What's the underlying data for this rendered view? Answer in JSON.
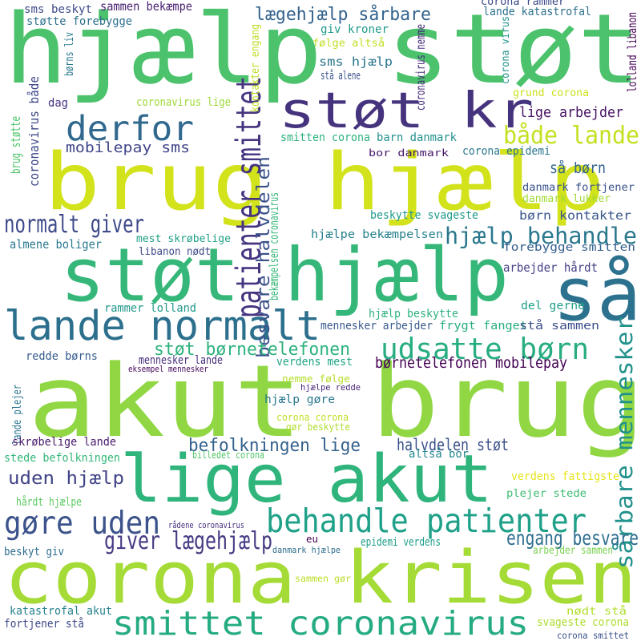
{
  "words": [
    {
      "text": "hjælp støt",
      "color": "#4cc26c"
    },
    {
      "text": "akut brug",
      "color": "#90d743"
    },
    {
      "text": "corona krisen",
      "color": "#a5db36"
    },
    {
      "text": "lige akut",
      "color": "#2fb47c"
    },
    {
      "text": "brug hjælp",
      "color": "#d2e21b"
    },
    {
      "text": "støt hjælp",
      "color": "#35b779"
    },
    {
      "text": "så",
      "color": "#2c728e"
    },
    {
      "text": "støt kr",
      "color": "#46337e"
    },
    {
      "text": "lande normalt",
      "color": "#2d708e"
    },
    {
      "text": "smittet coronavirus",
      "color": "#25ab82"
    },
    {
      "text": "derfor",
      "color": "#31688e"
    },
    {
      "text": "behandle patienter",
      "color": "#1fa088"
    },
    {
      "text": "udsatte børn",
      "color": "#27ad81"
    },
    {
      "text": "gøre uden",
      "color": "#3b528b"
    },
    {
      "text": "patienter smittet",
      "color": "#463480"
    },
    {
      "text": "lægehjælp sårbare",
      "color": "#33638d"
    },
    {
      "text": "både lande",
      "color": "#c5e021"
    },
    {
      "text": "normalt giver",
      "color": "#3e4989"
    },
    {
      "text": "hjælp behandle",
      "color": "#2a788e"
    },
    {
      "text": "giver lægehjælp",
      "color": "#443b84"
    },
    {
      "text": "besvare halvdelen",
      "color": "#3b528b"
    },
    {
      "text": "befolkningen lige",
      "color": "#34618d"
    },
    {
      "text": "sårbare mennesker",
      "color": "#21918c"
    },
    {
      "text": "engang besvare",
      "color": "#2e6e8e"
    },
    {
      "text": "støt børnetelefonen",
      "color": "#2db27d"
    },
    {
      "text": "så børn",
      "color": "#33638d"
    },
    {
      "text": "uden hjælp",
      "color": "#414487"
    },
    {
      "text": "børnetelefonen mobilepay",
      "color": "#440154"
    },
    {
      "text": "halvdelen støt",
      "color": "#3b528b"
    },
    {
      "text": "mobilepay sms",
      "color": "#404688"
    },
    {
      "text": "coronavirus lige",
      "color": "#9fda3a"
    },
    {
      "text": "sms hjælp",
      "color": "#2a768e"
    },
    {
      "text": "lige arbejder",
      "color": "#471164"
    },
    {
      "text": "børn kontakter",
      "color": "#39568c"
    },
    {
      "text": "almene boliger",
      "color": "#2a788e"
    },
    {
      "text": "mest skrøbelige",
      "color": "#1fa187"
    },
    {
      "text": "libanon nødt",
      "color": "#3e4989"
    },
    {
      "text": "hjælpe bekæmpelsen",
      "color": "#26828e"
    },
    {
      "text": "arbejder hårdt",
      "color": "#433e85"
    },
    {
      "text": "rammer lolland",
      "color": "#1f988b"
    },
    {
      "text": "hjælp beskytte",
      "color": "#2db27d"
    },
    {
      "text": "mennesker arbejder",
      "color": "#38598c"
    },
    {
      "text": "frygt fanget",
      "color": "#26ad81"
    },
    {
      "text": "del gerne",
      "color": "#1fa088"
    },
    {
      "text": "stå sammen",
      "color": "#3c4f8a"
    },
    {
      "text": "redde børns",
      "color": "#365c8d"
    },
    {
      "text": "mennesker lande",
      "color": "#46307e"
    },
    {
      "text": "verdens mest",
      "color": "#21a585"
    },
    {
      "text": "eksempel mennesker",
      "color": "#450559"
    },
    {
      "text": "nemme følge",
      "color": "#b5de2b"
    },
    {
      "text": "hjælpe redde",
      "color": "#482576"
    },
    {
      "text": "hjælp gøre",
      "color": "#2a788e"
    },
    {
      "text": "corona corona",
      "color": "#c0df25"
    },
    {
      "text": "gør beskytte",
      "color": "#b0dd2f"
    },
    {
      "text": "lande plejer",
      "color": "#2b758e"
    },
    {
      "text": "skrøbelige lande",
      "color": "#481a6c"
    },
    {
      "text": "stede befolkningen",
      "color": "#35b779"
    },
    {
      "text": "billedet corona",
      "color": "#52c569"
    },
    {
      "text": "altså bor",
      "color": "#24878e"
    },
    {
      "text": "verdens fattigste",
      "color": "#e5e419"
    },
    {
      "text": "plejer stede",
      "color": "#3dbc74"
    },
    {
      "text": "hårdt hjælpe",
      "color": "#5ec962"
    },
    {
      "text": "rådene coronavirus",
      "color": "#46307e"
    },
    {
      "text": "eu",
      "color": "#440154"
    },
    {
      "text": "epidemi verdens",
      "color": "#1f9e89"
    },
    {
      "text": "beskyt giv",
      "color": "#2e6d8e"
    },
    {
      "text": "danmark hjælpe",
      "color": "#2e6d8e"
    },
    {
      "text": "arbejder sammen",
      "color": "#7ad151"
    },
    {
      "text": "sammen gør",
      "color": "#bade28"
    },
    {
      "text": "nødt stå",
      "color": "#b2dd2d"
    },
    {
      "text": "katastrofal akut",
      "color": "#26828e"
    },
    {
      "text": "svageste corona",
      "color": "#addc30"
    },
    {
      "text": "fortjener stå",
      "color": "#3e4989"
    },
    {
      "text": "corona smittet",
      "color": "#3b528b"
    },
    {
      "text": "sms beskyt",
      "color": "#3e4a89"
    },
    {
      "text": "sammen bekæmpe",
      "color": "#482071"
    },
    {
      "text": "støtte forebygge",
      "color": "#2d708e"
    },
    {
      "text": "børns liv",
      "color": "#2a788e"
    },
    {
      "text": "giv kroner",
      "color": "#1f9a8a"
    },
    {
      "text": "følge altså",
      "color": "#c2df23"
    },
    {
      "text": "corona rammer",
      "color": "#3e4989"
    },
    {
      "text": "lande katastrofal",
      "color": "#2d708e"
    },
    {
      "text": "kontakter engang",
      "color": "#bddf26"
    },
    {
      "text": "coronavirus nemme",
      "color": "#472d7b"
    },
    {
      "text": "corona virus",
      "color": "#20928c"
    },
    {
      "text": "lolland libanon",
      "color": "#440154"
    },
    {
      "text": "stå alene",
      "color": "#3b528b"
    },
    {
      "text": "grund corona",
      "color": "#cde11d"
    },
    {
      "text": "dag",
      "color": "#46327e"
    },
    {
      "text": "coronavirus både",
      "color": "#3e4989"
    },
    {
      "text": "brug støtte",
      "color": "#50c46a"
    },
    {
      "text": "smitten corona",
      "color": "#2db27d"
    },
    {
      "text": "barn danmark",
      "color": "#21918c"
    },
    {
      "text": "bor danmark",
      "color": "#48186a"
    },
    {
      "text": "corona epidemi",
      "color": "#2a778e"
    },
    {
      "text": "danmark fortjener",
      "color": "#3a538b"
    },
    {
      "text": "danmark lukker",
      "color": "#a2da37"
    },
    {
      "text": "beskytte svageste",
      "color": "#1f9a8a"
    },
    {
      "text": "forebygge smitten",
      "color": "#355f8d"
    },
    {
      "text": "bekæmpelsen coronavirus",
      "color": "#35b779"
    }
  ]
}
